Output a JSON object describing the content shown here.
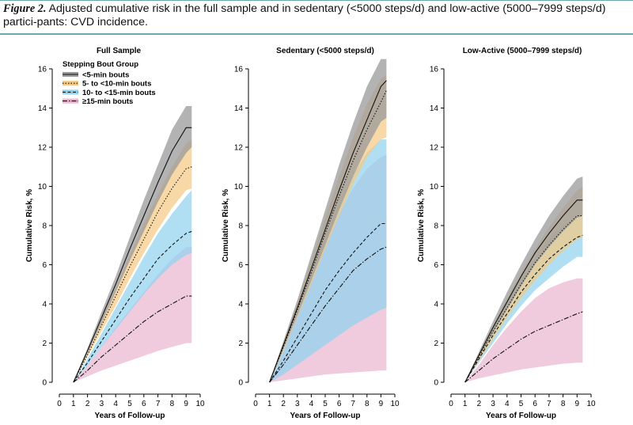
{
  "caption": {
    "figure_label": "Figure 2.",
    "text": "Adjusted cumulative risk in the full sample and in sedentary (<5000 steps/d) and low-active (5000–7999 steps/d) partici-pants: CVD incidence."
  },
  "legend": {
    "title": "Stepping Bout Group",
    "entries": [
      {
        "label": "<5-min bouts",
        "line_color": "#111111",
        "band_color": "#9a9a9a",
        "dash": ""
      },
      {
        "label": "5- to <10-min bouts",
        "line_color": "#111111",
        "band_color": "#f5c780",
        "dash": "1.5,2"
      },
      {
        "label": "10- to <15-min bouts",
        "line_color": "#111111",
        "band_color": "#8fd2ee",
        "dash": "4,2.5"
      },
      {
        "label": "≥15-min bouts",
        "line_color": "#111111",
        "band_color": "#e8b5cf",
        "dash": "6,2,1.5,2"
      }
    ]
  },
  "chart_data": [
    {
      "type": "line",
      "title": "Full Sample",
      "xlabel": "Years of Follow-up",
      "ylabel": "Cumulative Risk, %",
      "xlim": [
        0,
        10
      ],
      "ylim": [
        0,
        16
      ],
      "xticks": [
        0,
        1,
        2,
        3,
        4,
        5,
        6,
        7,
        8,
        9,
        10
      ],
      "yticks": [
        0,
        2,
        4,
        6,
        8,
        10,
        12,
        14,
        16
      ],
      "legend_position": "top-left",
      "series": [
        {
          "name": "<5-min bouts",
          "x": [
            1,
            2,
            3,
            4,
            5,
            6,
            7,
            8,
            9,
            9.4
          ],
          "values": [
            0,
            1.6,
            3.3,
            5.0,
            6.8,
            8.5,
            10.2,
            11.8,
            13.0,
            13.0
          ],
          "lower": [
            0,
            1.5,
            3.0,
            4.6,
            6.2,
            7.7,
            9.2,
            10.6,
            11.7,
            12.0
          ],
          "upper": [
            0,
            1.75,
            3.6,
            5.4,
            7.4,
            9.3,
            11.1,
            12.9,
            14.1,
            14.1
          ]
        },
        {
          "name": "5- to <10-min bouts",
          "x": [
            1,
            2,
            3,
            4,
            5,
            6,
            7,
            8,
            9,
            9.4
          ],
          "values": [
            0,
            1.4,
            2.9,
            4.4,
            5.9,
            7.3,
            8.7,
            9.9,
            10.9,
            11.0
          ],
          "lower": [
            0,
            1.3,
            2.6,
            3.9,
            5.3,
            6.6,
            7.8,
            8.9,
            9.8,
            9.9
          ],
          "upper": [
            0,
            1.5,
            3.2,
            4.8,
            6.5,
            8.1,
            9.6,
            11.0,
            12.2,
            12.4
          ]
        },
        {
          "name": "10- to <15-min bouts",
          "x": [
            1,
            2,
            3,
            4,
            5,
            6,
            7,
            8,
            9,
            9.4
          ],
          "values": [
            0,
            1.0,
            2.1,
            3.2,
            4.3,
            5.3,
            6.3,
            7.0,
            7.6,
            7.7
          ],
          "lower": [
            0,
            0.85,
            1.8,
            2.7,
            3.6,
            4.5,
            5.3,
            6.0,
            6.5,
            6.6
          ],
          "upper": [
            0,
            1.2,
            2.5,
            3.8,
            5.1,
            6.4,
            7.6,
            8.6,
            9.5,
            9.8
          ]
        },
        {
          "name": "≥15-min bouts",
          "x": [
            1,
            2,
            3,
            4,
            5,
            6,
            7,
            8,
            9,
            9.4
          ],
          "values": [
            0,
            0.6,
            1.3,
            1.9,
            2.5,
            3.1,
            3.6,
            4.0,
            4.4,
            4.4
          ],
          "lower": [
            0,
            0.3,
            0.6,
            0.85,
            1.1,
            1.35,
            1.6,
            1.8,
            2.0,
            2.0
          ],
          "upper": [
            0,
            0.85,
            1.8,
            2.8,
            3.7,
            4.6,
            5.5,
            6.3,
            6.9,
            6.9
          ]
        }
      ]
    },
    {
      "type": "line",
      "title": "Sedentary (<5000 steps/d)",
      "xlabel": "Years of Follow-up",
      "ylabel": "Cumulative Risk, %",
      "xlim": [
        0,
        10
      ],
      "ylim": [
        0,
        16
      ],
      "xticks": [
        0,
        1,
        2,
        3,
        4,
        5,
        6,
        7,
        8,
        9,
        10
      ],
      "yticks": [
        0,
        2,
        4,
        6,
        8,
        10,
        12,
        14,
        16
      ],
      "series": [
        {
          "name": "<5-min bouts",
          "x": [
            1,
            2,
            3,
            4,
            5,
            6,
            7,
            8,
            9,
            9.4
          ],
          "values": [
            0,
            1.9,
            3.8,
            5.8,
            7.8,
            9.8,
            11.7,
            13.4,
            15.1,
            15.4
          ],
          "lower": [
            0,
            1.7,
            3.4,
            5.2,
            7.0,
            8.8,
            10.5,
            12.0,
            13.3,
            13.5
          ],
          "upper": [
            0,
            2.1,
            4.2,
            6.5,
            8.8,
            11.1,
            13.2,
            15.1,
            16.5,
            16.5
          ]
        },
        {
          "name": "5- to <10-min bouts",
          "x": [
            1,
            2,
            3,
            4,
            5,
            6,
            7,
            8,
            9,
            9.4
          ],
          "values": [
            0,
            1.8,
            3.7,
            5.6,
            7.6,
            9.5,
            11.3,
            12.9,
            14.3,
            14.9
          ],
          "lower": [
            0,
            1.6,
            3.3,
            5.0,
            6.8,
            8.5,
            10.1,
            11.5,
            12.4,
            12.5
          ],
          "upper": [
            0,
            2.0,
            4.1,
            6.2,
            8.4,
            10.5,
            12.5,
            14.2,
            15.5,
            15.7
          ]
        },
        {
          "name": "10- to <15-min bouts",
          "x": [
            1,
            2,
            3,
            4,
            5,
            6,
            7,
            8,
            9,
            9.4
          ],
          "values": [
            0,
            1.1,
            2.3,
            3.5,
            4.7,
            5.7,
            6.6,
            7.4,
            8.1,
            8.1
          ],
          "lower": [
            0,
            0.4,
            0.9,
            1.4,
            1.9,
            2.4,
            2.9,
            3.3,
            3.7,
            3.8
          ],
          "upper": [
            0,
            1.7,
            3.6,
            5.5,
            7.4,
            9.1,
            10.6,
            11.7,
            12.4,
            12.4
          ]
        },
        {
          "name": "≥15-min bouts",
          "x": [
            1,
            2,
            3,
            4,
            5,
            6,
            7,
            8,
            9,
            9.4
          ],
          "values": [
            0,
            0.9,
            1.9,
            2.9,
            3.9,
            4.8,
            5.7,
            6.3,
            6.8,
            6.9
          ],
          "lower": [
            0,
            0.1,
            0.2,
            0.3,
            0.4,
            0.45,
            0.5,
            0.55,
            0.6,
            0.6
          ],
          "upper": [
            0,
            1.6,
            3.4,
            5.2,
            7.0,
            8.6,
            9.9,
            10.9,
            11.5,
            11.6
          ]
        }
      ]
    },
    {
      "type": "line",
      "title": "Low-Active (5000–7999 steps/d)",
      "xlabel": "Years of Follow-up",
      "ylabel": "Cumulative Risk, %",
      "xlim": [
        0,
        10
      ],
      "ylim": [
        0,
        16
      ],
      "xticks": [
        0,
        1,
        2,
        3,
        4,
        5,
        6,
        7,
        8,
        9,
        10
      ],
      "yticks": [
        0,
        2,
        4,
        6,
        8,
        10,
        12,
        14,
        16
      ],
      "series": [
        {
          "name": "<5-min bouts",
          "x": [
            1,
            2,
            3,
            4,
            5,
            6,
            7,
            8,
            9,
            9.4
          ],
          "values": [
            0,
            1.4,
            2.8,
            4.1,
            5.4,
            6.6,
            7.6,
            8.5,
            9.3,
            9.3
          ],
          "lower": [
            0,
            1.3,
            2.5,
            3.7,
            4.9,
            6.0,
            6.9,
            7.7,
            8.4,
            8.5
          ],
          "upper": [
            0,
            1.55,
            3.1,
            4.6,
            6.0,
            7.3,
            8.5,
            9.5,
            10.4,
            10.5
          ]
        },
        {
          "name": "5- to <10-min bouts",
          "x": [
            1,
            2,
            3,
            4,
            5,
            6,
            7,
            8,
            9,
            9.4
          ],
          "values": [
            0,
            1.3,
            2.6,
            3.8,
            5.0,
            6.1,
            7.0,
            7.8,
            8.5,
            8.5
          ],
          "lower": [
            0,
            1.1,
            2.2,
            3.3,
            4.3,
            5.2,
            6.0,
            6.7,
            7.3,
            7.4
          ],
          "upper": [
            0,
            1.45,
            2.9,
            4.3,
            5.6,
            6.8,
            7.9,
            8.9,
            9.8,
            10.0
          ]
        },
        {
          "name": "10- to <15-min bouts",
          "x": [
            1,
            2,
            3,
            4,
            5,
            6,
            7,
            8,
            9,
            9.4
          ],
          "values": [
            0,
            1.2,
            2.4,
            3.5,
            4.6,
            5.5,
            6.3,
            6.9,
            7.4,
            7.5
          ],
          "lower": [
            0,
            1.0,
            2.0,
            3.0,
            3.9,
            4.7,
            5.3,
            5.9,
            6.4,
            6.4
          ],
          "upper": [
            0,
            1.4,
            2.8,
            4.1,
            5.3,
            6.3,
            7.3,
            8.0,
            8.5,
            8.6
          ]
        },
        {
          "name": "≥15-min bouts",
          "x": [
            1,
            2,
            3,
            4,
            5,
            6,
            7,
            8,
            9,
            9.4
          ],
          "values": [
            0,
            0.6,
            1.2,
            1.7,
            2.2,
            2.6,
            2.9,
            3.2,
            3.5,
            3.6
          ],
          "lower": [
            0,
            0.2,
            0.35,
            0.5,
            0.65,
            0.75,
            0.85,
            0.95,
            1.0,
            1.0
          ],
          "upper": [
            0,
            0.9,
            1.9,
            2.8,
            3.6,
            4.3,
            4.8,
            5.1,
            5.3,
            5.3
          ]
        }
      ]
    }
  ]
}
